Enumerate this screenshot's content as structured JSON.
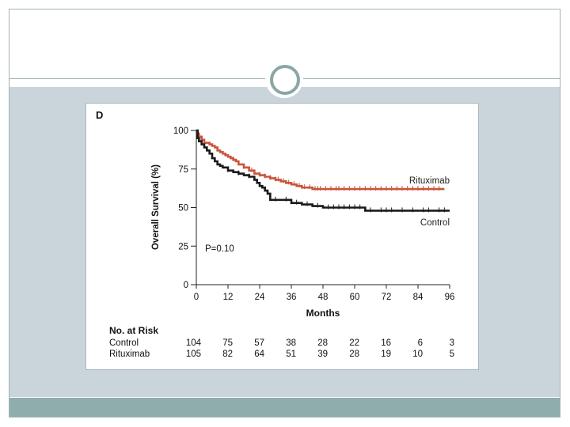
{
  "slide": {
    "colors": {
      "content_bg": "#c9d5da",
      "bottom_bar": "#8fadad",
      "ornament": "#8aa6a6"
    }
  },
  "chart_data": {
    "type": "line",
    "panel_label": "D",
    "xlabel": "Months",
    "ylabel": "Overall Survival (%)",
    "xlim": [
      0,
      96
    ],
    "ylim": [
      0,
      100
    ],
    "xticks": [
      0,
      12,
      24,
      36,
      48,
      60,
      72,
      84,
      96
    ],
    "yticks": [
      0,
      25,
      50,
      75,
      100
    ],
    "annotation": "P=0.10",
    "series": [
      {
        "name": "Rituximab",
        "color": "#c8553a",
        "x": [
          0,
          0.5,
          1,
          2,
          3,
          5,
          6,
          7,
          8,
          9,
          10,
          11,
          12,
          13,
          14,
          15,
          16,
          18,
          20,
          22,
          24,
          26,
          28,
          30,
          32,
          34,
          36,
          38,
          40,
          42,
          44,
          46,
          48,
          52,
          56,
          60,
          64,
          68,
          72,
          78,
          84,
          90,
          94
        ],
        "y": [
          100,
          98,
          96,
          94,
          92,
          91,
          90,
          89,
          87,
          86,
          85,
          84,
          83,
          82,
          81,
          80,
          78,
          76,
          74,
          72,
          71,
          70,
          69,
          68,
          67,
          66,
          65,
          64,
          63,
          63,
          62,
          62,
          62,
          62,
          62,
          62,
          62,
          62,
          62,
          62,
          62,
          62,
          62
        ],
        "censor_x": [
          14,
          18,
          21,
          24,
          26,
          28,
          30,
          31,
          33,
          35,
          37,
          39,
          41,
          43,
          45,
          46,
          47,
          49,
          51,
          53,
          54,
          56,
          58,
          60,
          62,
          64,
          66,
          68,
          70,
          72,
          74,
          76,
          78,
          80,
          82,
          84,
          86,
          88,
          90,
          92
        ]
      },
      {
        "name": "Control",
        "color": "#1a1a1a",
        "x": [
          0,
          0.5,
          1,
          2,
          3,
          4,
          5,
          6,
          7,
          8,
          9,
          10,
          12,
          14,
          16,
          18,
          20,
          22,
          23,
          24,
          25,
          26,
          27,
          28,
          30,
          32,
          36,
          40,
          44,
          48,
          52,
          56,
          60,
          62,
          64,
          72,
          80,
          88,
          96
        ],
        "y": [
          100,
          95,
          93,
          91,
          89,
          87,
          85,
          82,
          80,
          78,
          77,
          76,
          74,
          73,
          72,
          71,
          70,
          68,
          66,
          64,
          63,
          61,
          59,
          55,
          55,
          55,
          53,
          52,
          51,
          50,
          50,
          50,
          50,
          50,
          48,
          48,
          48,
          48,
          48
        ],
        "censor_x": [
          12,
          16,
          20,
          30,
          34,
          38,
          42,
          46,
          50,
          52,
          54,
          56,
          58,
          60,
          62,
          66,
          70,
          72,
          74,
          78,
          82,
          86,
          88,
          92,
          94
        ]
      }
    ],
    "risk_table": {
      "title": "No. at Risk",
      "months": [
        0,
        12,
        24,
        36,
        48,
        60,
        72,
        84,
        96
      ],
      "rows": [
        {
          "label": "Control",
          "values": [
            104,
            75,
            57,
            38,
            28,
            22,
            16,
            6,
            3
          ]
        },
        {
          "label": "Rituximab",
          "values": [
            105,
            82,
            64,
            51,
            39,
            28,
            19,
            10,
            5
          ]
        }
      ]
    }
  }
}
